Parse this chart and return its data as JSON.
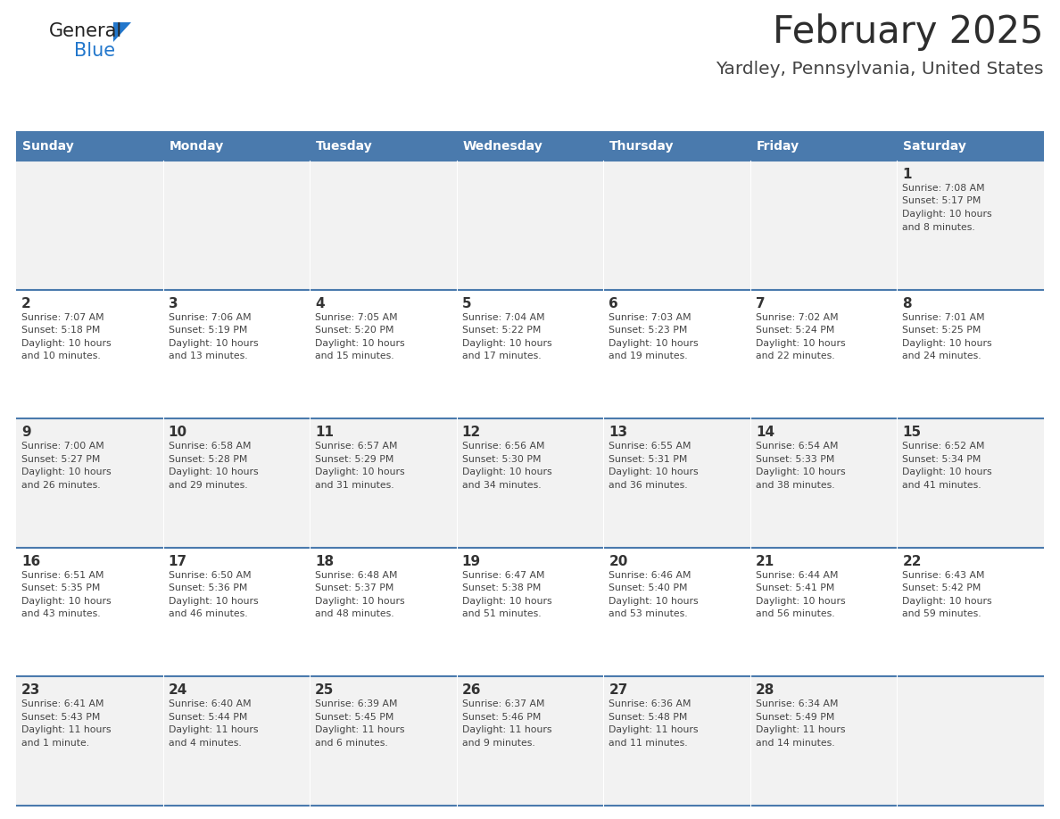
{
  "title": "February 2025",
  "subtitle": "Yardley, Pennsylvania, United States",
  "header_bg": "#4a7aad",
  "header_text_color": "#ffffff",
  "day_names": [
    "Sunday",
    "Monday",
    "Tuesday",
    "Wednesday",
    "Thursday",
    "Friday",
    "Saturday"
  ],
  "cell_bg_even": "#f2f2f2",
  "cell_bg_odd": "#ffffff",
  "separator_color": "#4a7aad",
  "date_text_color": "#333333",
  "info_text_color": "#444444",
  "logo_general_color": "#222222",
  "logo_blue_color": "#2277cc",
  "logo_triangle_color": "#2277cc",
  "calendar": [
    [
      null,
      null,
      null,
      null,
      null,
      null,
      {
        "day": "1",
        "sunrise": "7:08 AM",
        "sunset": "5:17 PM",
        "daylight_line1": "Daylight: 10 hours",
        "daylight_line2": "and 8 minutes."
      }
    ],
    [
      {
        "day": "2",
        "sunrise": "7:07 AM",
        "sunset": "5:18 PM",
        "daylight_line1": "Daylight: 10 hours",
        "daylight_line2": "and 10 minutes."
      },
      {
        "day": "3",
        "sunrise": "7:06 AM",
        "sunset": "5:19 PM",
        "daylight_line1": "Daylight: 10 hours",
        "daylight_line2": "and 13 minutes."
      },
      {
        "day": "4",
        "sunrise": "7:05 AM",
        "sunset": "5:20 PM",
        "daylight_line1": "Daylight: 10 hours",
        "daylight_line2": "and 15 minutes."
      },
      {
        "day": "5",
        "sunrise": "7:04 AM",
        "sunset": "5:22 PM",
        "daylight_line1": "Daylight: 10 hours",
        "daylight_line2": "and 17 minutes."
      },
      {
        "day": "6",
        "sunrise": "7:03 AM",
        "sunset": "5:23 PM",
        "daylight_line1": "Daylight: 10 hours",
        "daylight_line2": "and 19 minutes."
      },
      {
        "day": "7",
        "sunrise": "7:02 AM",
        "sunset": "5:24 PM",
        "daylight_line1": "Daylight: 10 hours",
        "daylight_line2": "and 22 minutes."
      },
      {
        "day": "8",
        "sunrise": "7:01 AM",
        "sunset": "5:25 PM",
        "daylight_line1": "Daylight: 10 hours",
        "daylight_line2": "and 24 minutes."
      }
    ],
    [
      {
        "day": "9",
        "sunrise": "7:00 AM",
        "sunset": "5:27 PM",
        "daylight_line1": "Daylight: 10 hours",
        "daylight_line2": "and 26 minutes."
      },
      {
        "day": "10",
        "sunrise": "6:58 AM",
        "sunset": "5:28 PM",
        "daylight_line1": "Daylight: 10 hours",
        "daylight_line2": "and 29 minutes."
      },
      {
        "day": "11",
        "sunrise": "6:57 AM",
        "sunset": "5:29 PM",
        "daylight_line1": "Daylight: 10 hours",
        "daylight_line2": "and 31 minutes."
      },
      {
        "day": "12",
        "sunrise": "6:56 AM",
        "sunset": "5:30 PM",
        "daylight_line1": "Daylight: 10 hours",
        "daylight_line2": "and 34 minutes."
      },
      {
        "day": "13",
        "sunrise": "6:55 AM",
        "sunset": "5:31 PM",
        "daylight_line1": "Daylight: 10 hours",
        "daylight_line2": "and 36 minutes."
      },
      {
        "day": "14",
        "sunrise": "6:54 AM",
        "sunset": "5:33 PM",
        "daylight_line1": "Daylight: 10 hours",
        "daylight_line2": "and 38 minutes."
      },
      {
        "day": "15",
        "sunrise": "6:52 AM",
        "sunset": "5:34 PM",
        "daylight_line1": "Daylight: 10 hours",
        "daylight_line2": "and 41 minutes."
      }
    ],
    [
      {
        "day": "16",
        "sunrise": "6:51 AM",
        "sunset": "5:35 PM",
        "daylight_line1": "Daylight: 10 hours",
        "daylight_line2": "and 43 minutes."
      },
      {
        "day": "17",
        "sunrise": "6:50 AM",
        "sunset": "5:36 PM",
        "daylight_line1": "Daylight: 10 hours",
        "daylight_line2": "and 46 minutes."
      },
      {
        "day": "18",
        "sunrise": "6:48 AM",
        "sunset": "5:37 PM",
        "daylight_line1": "Daylight: 10 hours",
        "daylight_line2": "and 48 minutes."
      },
      {
        "day": "19",
        "sunrise": "6:47 AM",
        "sunset": "5:38 PM",
        "daylight_line1": "Daylight: 10 hours",
        "daylight_line2": "and 51 minutes."
      },
      {
        "day": "20",
        "sunrise": "6:46 AM",
        "sunset": "5:40 PM",
        "daylight_line1": "Daylight: 10 hours",
        "daylight_line2": "and 53 minutes."
      },
      {
        "day": "21",
        "sunrise": "6:44 AM",
        "sunset": "5:41 PM",
        "daylight_line1": "Daylight: 10 hours",
        "daylight_line2": "and 56 minutes."
      },
      {
        "day": "22",
        "sunrise": "6:43 AM",
        "sunset": "5:42 PM",
        "daylight_line1": "Daylight: 10 hours",
        "daylight_line2": "and 59 minutes."
      }
    ],
    [
      {
        "day": "23",
        "sunrise": "6:41 AM",
        "sunset": "5:43 PM",
        "daylight_line1": "Daylight: 11 hours",
        "daylight_line2": "and 1 minute."
      },
      {
        "day": "24",
        "sunrise": "6:40 AM",
        "sunset": "5:44 PM",
        "daylight_line1": "Daylight: 11 hours",
        "daylight_line2": "and 4 minutes."
      },
      {
        "day": "25",
        "sunrise": "6:39 AM",
        "sunset": "5:45 PM",
        "daylight_line1": "Daylight: 11 hours",
        "daylight_line2": "and 6 minutes."
      },
      {
        "day": "26",
        "sunrise": "6:37 AM",
        "sunset": "5:46 PM",
        "daylight_line1": "Daylight: 11 hours",
        "daylight_line2": "and 9 minutes."
      },
      {
        "day": "27",
        "sunrise": "6:36 AM",
        "sunset": "5:48 PM",
        "daylight_line1": "Daylight: 11 hours",
        "daylight_line2": "and 11 minutes."
      },
      {
        "day": "28",
        "sunrise": "6:34 AM",
        "sunset": "5:49 PM",
        "daylight_line1": "Daylight: 11 hours",
        "daylight_line2": "and 14 minutes."
      },
      null
    ]
  ]
}
